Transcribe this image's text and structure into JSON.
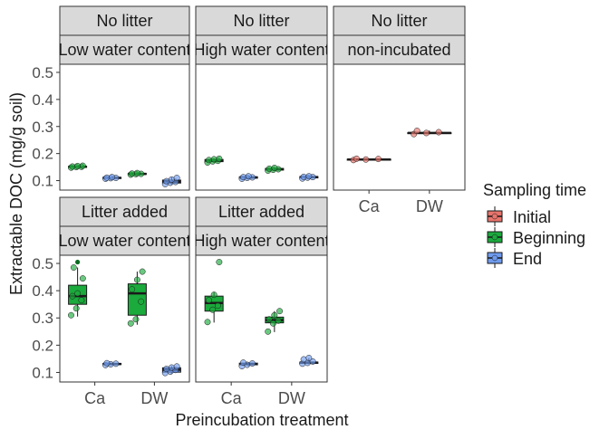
{
  "chart_data": {
    "type": "boxplot",
    "ylabel": "Extractable DOC (mg/g soil)",
    "xlabel": "Preincubation treatment",
    "ylim": [
      0.065,
      0.53
    ],
    "yticks": [
      0.1,
      0.2,
      0.3,
      0.4,
      0.5
    ],
    "ytick_labels": [
      "0.1",
      "0.2",
      "0.3",
      "0.4",
      "0.5"
    ],
    "categories": [
      "Ca",
      "DW"
    ],
    "legend": {
      "title": "Sampling time",
      "position": "right",
      "entries": [
        {
          "name": "Initial",
          "color": "#E8746C"
        },
        {
          "name": "Beginning",
          "color": "#1BAA3C"
        },
        {
          "name": "End",
          "color": "#6F9BEE"
        }
      ]
    },
    "panels": [
      {
        "strip_top": "No litter",
        "strip_bottom": "Low water content",
        "groups": [
          {
            "x": "Ca",
            "series": "Beginning",
            "min": 0.147,
            "q1": 0.149,
            "median": 0.151,
            "q3": 0.153,
            "max": 0.155,
            "points": [
              0.148,
              0.15,
              0.151,
              0.152,
              0.154,
              0.155
            ]
          },
          {
            "x": "Ca",
            "series": "End",
            "min": 0.106,
            "q1": 0.108,
            "median": 0.11,
            "q3": 0.112,
            "max": 0.114,
            "points": [
              0.107,
              0.109,
              0.11,
              0.111,
              0.113
            ]
          },
          {
            "x": "DW",
            "series": "Beginning",
            "min": 0.121,
            "q1": 0.123,
            "median": 0.125,
            "q3": 0.127,
            "max": 0.129,
            "points": [
              0.122,
              0.124,
              0.125,
              0.126,
              0.128
            ]
          },
          {
            "x": "DW",
            "series": "End",
            "min": 0.085,
            "q1": 0.091,
            "median": 0.096,
            "q3": 0.102,
            "max": 0.112,
            "points": [
              0.087,
              0.092,
              0.095,
              0.098,
              0.104,
              0.11
            ]
          }
        ]
      },
      {
        "strip_top": "No litter",
        "strip_bottom": "High water content",
        "groups": [
          {
            "x": "Ca",
            "series": "Beginning",
            "min": 0.166,
            "q1": 0.17,
            "median": 0.174,
            "q3": 0.178,
            "max": 0.182,
            "points": [
              0.167,
              0.171,
              0.173,
              0.176,
              0.179,
              0.181
            ]
          },
          {
            "x": "Ca",
            "series": "End",
            "min": 0.106,
            "q1": 0.109,
            "median": 0.112,
            "q3": 0.114,
            "max": 0.117,
            "points": [
              0.107,
              0.11,
              0.112,
              0.113,
              0.116
            ]
          },
          {
            "x": "DW",
            "series": "Beginning",
            "min": 0.136,
            "q1": 0.139,
            "median": 0.142,
            "q3": 0.145,
            "max": 0.148,
            "points": [
              0.137,
              0.14,
              0.142,
              0.144,
              0.147
            ]
          },
          {
            "x": "DW",
            "series": "End",
            "min": 0.107,
            "q1": 0.11,
            "median": 0.113,
            "q3": 0.115,
            "max": 0.117,
            "points": [
              0.108,
              0.111,
              0.113,
              0.114,
              0.116
            ]
          }
        ]
      },
      {
        "strip_top": "No litter",
        "strip_bottom": "non-incubated",
        "groups": [
          {
            "x": "Ca",
            "series": "Initial",
            "min": 0.175,
            "q1": 0.177,
            "median": 0.178,
            "q3": 0.179,
            "max": 0.182,
            "points": [
              0.176,
              0.178,
              0.18,
              0.181
            ]
          },
          {
            "x": "DW",
            "series": "Initial",
            "min": 0.271,
            "q1": 0.274,
            "median": 0.276,
            "q3": 0.277,
            "max": 0.285,
            "points": [
              0.272,
              0.276,
              0.279,
              0.284
            ]
          }
        ]
      },
      {
        "strip_top": "Litter added",
        "strip_bottom": "Low water content",
        "groups": [
          {
            "x": "Ca",
            "series": "Beginning",
            "min": 0.305,
            "q1": 0.35,
            "median": 0.38,
            "q3": 0.42,
            "max": 0.485,
            "points": [
              0.31,
              0.335,
              0.365,
              0.38,
              0.39,
              0.445,
              0.485
            ]
          },
          {
            "x": "Ca",
            "series": "End",
            "min": 0.126,
            "q1": 0.129,
            "median": 0.131,
            "q3": 0.133,
            "max": 0.136,
            "points": [
              0.127,
              0.13,
              0.132,
              0.134
            ]
          },
          {
            "x": "DW",
            "series": "Beginning",
            "min": 0.275,
            "q1": 0.31,
            "median": 0.39,
            "q3": 0.425,
            "max": 0.47,
            "points": [
              0.28,
              0.295,
              0.36,
              0.405,
              0.44,
              0.47
            ]
          },
          {
            "x": "DW",
            "series": "End",
            "min": 0.095,
            "q1": 0.101,
            "median": 0.11,
            "q3": 0.117,
            "max": 0.123,
            "points": [
              0.098,
              0.103,
              0.109,
              0.113,
              0.118,
              0.122
            ]
          }
        ]
      },
      {
        "strip_top": "Litter added",
        "strip_bottom": "High water content",
        "groups": [
          {
            "x": "Ca",
            "series": "Beginning",
            "min": 0.283,
            "q1": 0.325,
            "median": 0.355,
            "q3": 0.38,
            "max": 0.395,
            "points": [
              0.285,
              0.33,
              0.345,
              0.365,
              0.385,
              0.505
            ]
          },
          {
            "x": "Ca",
            "series": "End",
            "min": 0.122,
            "q1": 0.128,
            "median": 0.131,
            "q3": 0.134,
            "max": 0.137,
            "points": [
              0.123,
              0.128,
              0.133,
              0.136
            ]
          },
          {
            "x": "DW",
            "series": "Beginning",
            "min": 0.248,
            "q1": 0.282,
            "median": 0.292,
            "q3": 0.303,
            "max": 0.325,
            "points": [
              0.25,
              0.28,
              0.29,
              0.295,
              0.31,
              0.325
            ]
          },
          {
            "x": "DW",
            "series": "End",
            "min": 0.13,
            "q1": 0.133,
            "median": 0.136,
            "q3": 0.138,
            "max": 0.152,
            "points": [
              0.132,
              0.135,
              0.14,
              0.148,
              0.153
            ]
          }
        ]
      }
    ],
    "outliers": [
      {
        "panel": 4,
        "x": "Ca",
        "series": "Beginning",
        "value": 0.505
      }
    ]
  }
}
